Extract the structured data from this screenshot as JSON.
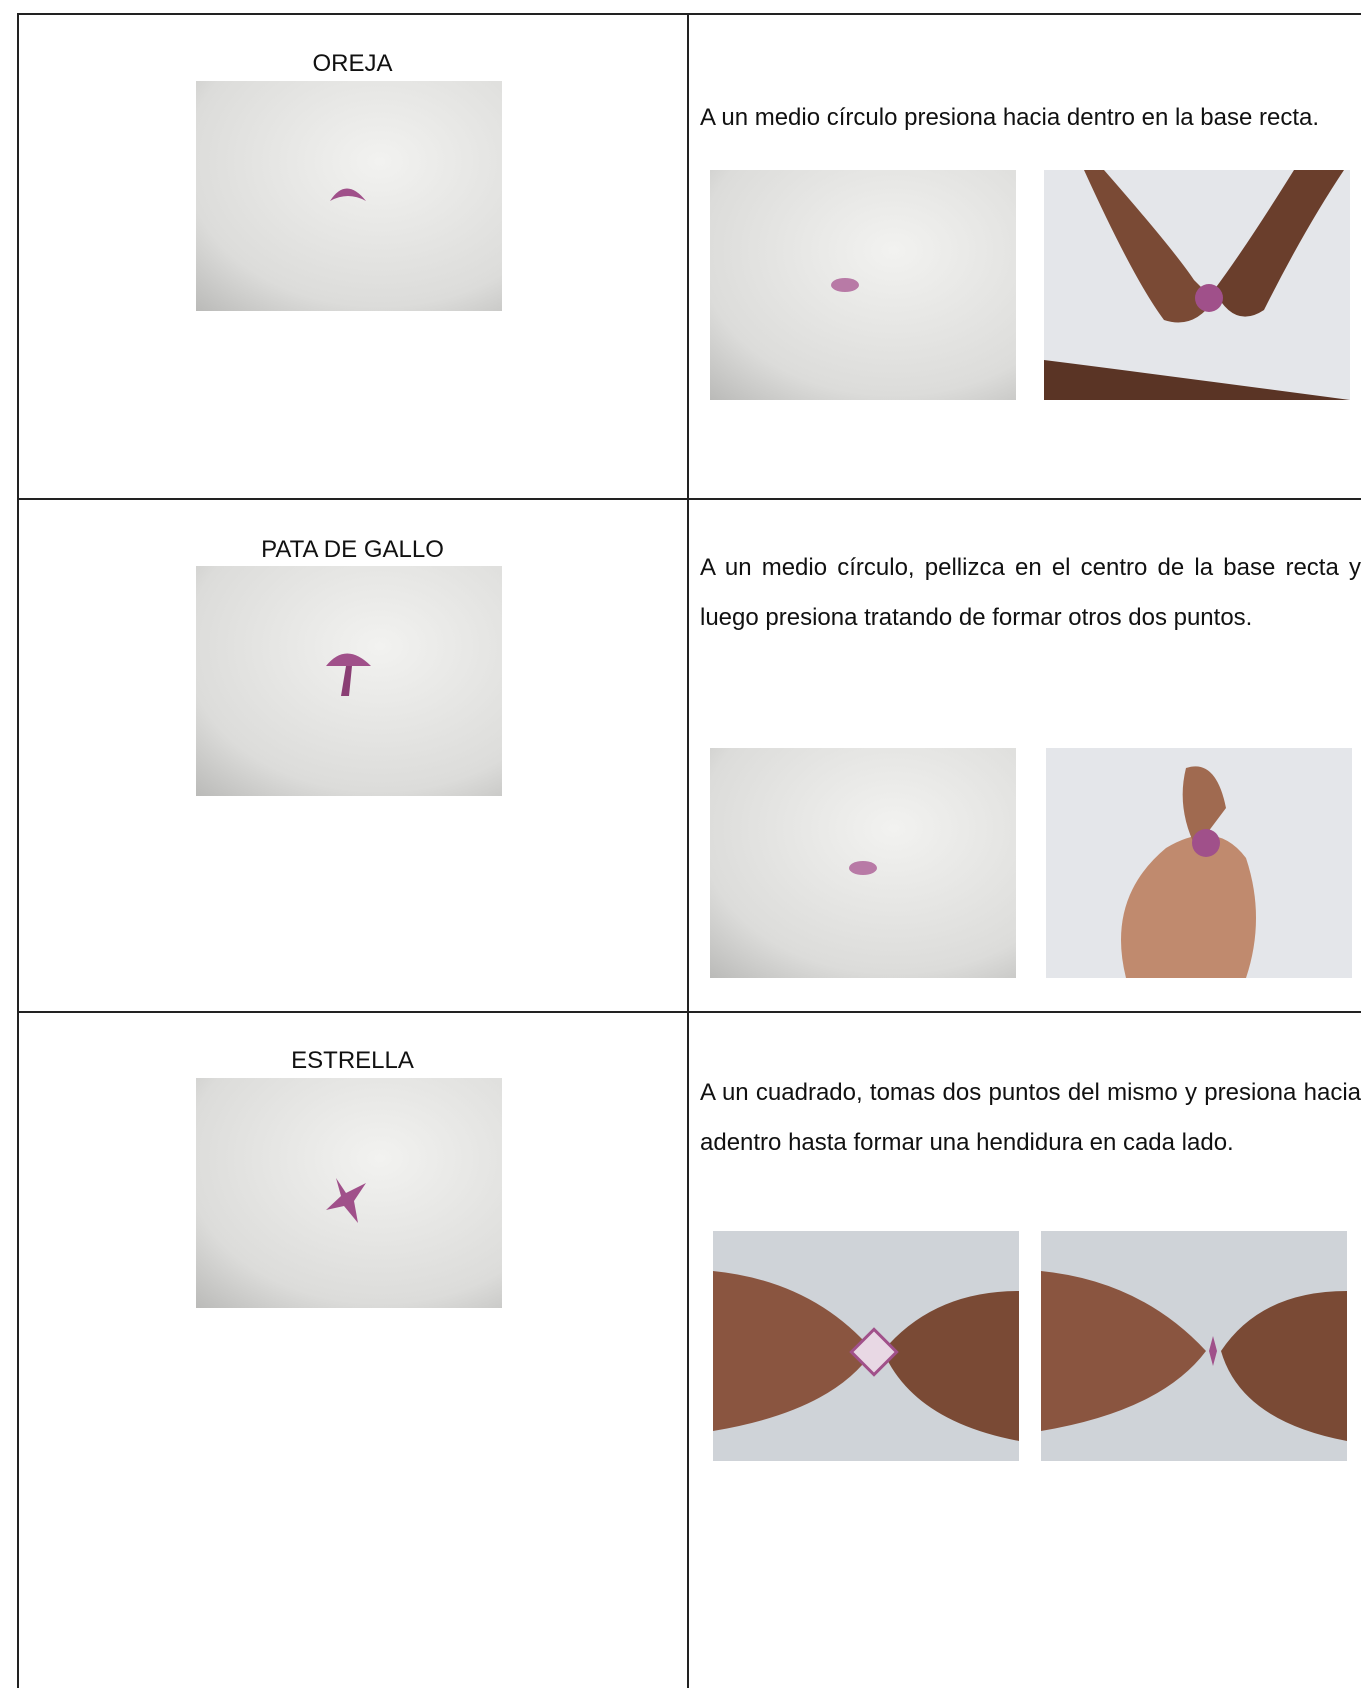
{
  "table": {
    "rows": [
      {
        "label": "OREJA",
        "description": "A un medio círculo presiona hacia dentro en la base recta."
      },
      {
        "label": "PATA DE GALLO",
        "description": "A un medio círculo, pellizca en el centro de la base recta y luego presiona tratando de formar otros dos puntos."
      },
      {
        "label": "ESTRELLA",
        "description": "A un cuadrado, tomas dos puntos del mismo y presiona hacia adentro hasta formar una hendidura en cada lado."
      }
    ]
  }
}
